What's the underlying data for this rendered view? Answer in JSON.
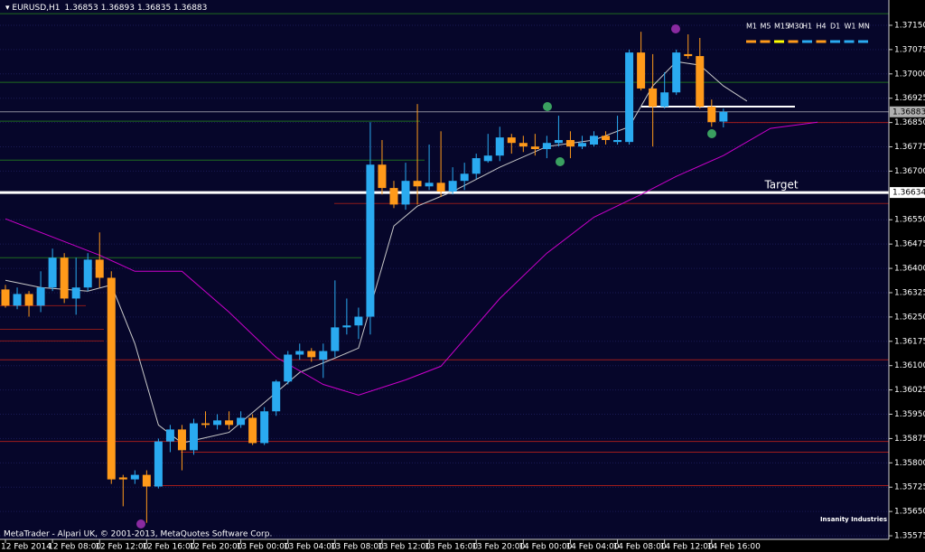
{
  "chart_data": {
    "type": "candlestick",
    "header": {
      "symbol": "EURUSD,H1",
      "ohlc": [
        1.36853,
        1.36893,
        1.36835,
        1.36883
      ]
    },
    "categories": [
      "12 Feb 2014",
      null,
      null,
      null,
      "12 Feb 08:00",
      null,
      null,
      null,
      "12 Feb 12:00",
      null,
      null,
      null,
      "12 Feb 16:00",
      null,
      null,
      null,
      "12 Feb 20:00",
      null,
      null,
      null,
      "13 Feb 00:00",
      null,
      null,
      null,
      "13 Feb 04:00",
      null,
      null,
      null,
      "13 Feb 08:00",
      null,
      null,
      null,
      "13 Feb 12:00",
      null,
      null,
      null,
      "13 Feb 16:00",
      null,
      null,
      null,
      "13 Feb 20:00",
      null,
      null,
      null,
      "14 Feb 00:00",
      null,
      null,
      null,
      "14 Feb 04:00",
      null,
      null,
      null,
      "14 Feb 08:00",
      null,
      null,
      null,
      "14 Feb 12:00",
      null,
      null,
      null,
      "14 Feb 16:00",
      null
    ],
    "open": [
      1.36335,
      1.36285,
      1.36321,
      1.36285,
      1.36341,
      1.36433,
      1.36307,
      1.36341,
      1.36427,
      1.36371,
      1.35755,
      1.35749,
      1.35763,
      1.35727,
      1.35866,
      1.35903,
      1.35839,
      1.35922,
      1.35917,
      1.35931,
      1.35917,
      1.35939,
      1.35861,
      1.35959,
      1.36051,
      1.36134,
      1.36145,
      1.36118,
      1.36145,
      1.36218,
      1.36224,
      1.36251,
      1.3672,
      1.36648,
      1.36597,
      1.3667,
      1.36653,
      1.36664,
      1.36637,
      1.3667,
      1.36692,
      1.36731,
      1.36748,
      1.36804,
      1.36787,
      1.36776,
      1.36768,
      1.36787,
      1.36796,
      1.36776,
      1.36782,
      1.36809,
      1.3679,
      1.3679,
      1.37066,
      1.36955,
      1.36899,
      1.36943,
      1.37061,
      1.37055,
      1.36899,
      1.36853
    ],
    "high": [
      1.36349,
      1.36341,
      1.3633,
      1.36391,
      1.36461,
      1.36447,
      1.36433,
      1.36447,
      1.36511,
      1.36391,
      1.35763,
      1.35777,
      1.35777,
      1.35875,
      1.35917,
      1.35917,
      1.35936,
      1.35959,
      1.3595,
      1.35959,
      1.35959,
      1.3595,
      1.35972,
      1.36056,
      1.36145,
      1.36168,
      1.36154,
      1.36168,
      1.36363,
      1.36307,
      1.36279,
      1.36851,
      1.36796,
      1.3667,
      1.36726,
      1.36907,
      1.36782,
      1.36823,
      1.36712,
      1.36726,
      1.36754,
      1.36815,
      1.36837,
      1.36815,
      1.36809,
      1.36815,
      1.36809,
      1.36871,
      1.36823,
      1.36809,
      1.36823,
      1.36823,
      1.36871,
      1.37075,
      1.3713,
      1.37061,
      1.37005,
      1.37075,
      1.37122,
      1.37111,
      1.36921,
      1.36893
    ],
    "low": [
      1.36279,
      1.36274,
      1.36251,
      1.36265,
      1.3633,
      1.36293,
      1.36257,
      1.3633,
      1.36341,
      1.35735,
      1.35666,
      1.35735,
      1.35615,
      1.35721,
      1.35833,
      1.35777,
      1.35825,
      1.35908,
      1.35903,
      1.35903,
      1.35908,
      1.35855,
      1.35855,
      1.35945,
      1.36042,
      1.36118,
      1.36112,
      1.36062,
      1.36126,
      1.36196,
      1.36182,
      1.36196,
      1.36628,
      1.36586,
      1.36581,
      1.36597,
      1.36642,
      1.3662,
      1.36628,
      1.36642,
      1.36676,
      1.36726,
      1.36731,
      1.36754,
      1.36759,
      1.36748,
      1.3674,
      1.36776,
      1.3674,
      1.36768,
      1.36776,
      1.36782,
      1.36782,
      1.36782,
      1.36949,
      1.36776,
      1.36893,
      1.36935,
      1.37047,
      1.36893,
      1.36837,
      1.36835
    ],
    "close": [
      1.36285,
      1.36321,
      1.36285,
      1.36341,
      1.36433,
      1.36307,
      1.36341,
      1.36427,
      1.36371,
      1.35749,
      1.35749,
      1.35763,
      1.35727,
      1.35866,
      1.35903,
      1.35839,
      1.35922,
      1.35917,
      1.35931,
      1.35917,
      1.35939,
      1.35861,
      1.35959,
      1.36051,
      1.36134,
      1.36145,
      1.36126,
      1.36145,
      1.36218,
      1.36224,
      1.36251,
      1.3672,
      1.36648,
      1.36597,
      1.3667,
      1.36653,
      1.36664,
      1.36637,
      1.3667,
      1.36692,
      1.3674,
      1.36748,
      1.36804,
      1.36787,
      1.36776,
      1.36768,
      1.36787,
      1.36796,
      1.36776,
      1.36787,
      1.36809,
      1.36796,
      1.36796,
      1.37066,
      1.36955,
      1.36899,
      1.36943,
      1.37066,
      1.37055,
      1.36899,
      1.36851,
      1.36883
    ],
    "up_color": "#2aaaf0",
    "down_color": "#ff9a1a",
    "moving_averages": [
      {
        "color": "#c8c8c8",
        "x": [
          0,
          3,
          7,
          9,
          11,
          13,
          15,
          19,
          22,
          25,
          28,
          30,
          31,
          33,
          35,
          38,
          42,
          46,
          50,
          53,
          55,
          57,
          59,
          61,
          63
        ],
        "values": [
          1.36363,
          1.36341,
          1.3633,
          1.36349,
          1.36168,
          1.35917,
          1.35861,
          1.35894,
          1.35986,
          1.36079,
          1.36123,
          1.36154,
          1.36279,
          1.36531,
          1.36592,
          1.36637,
          1.36712,
          1.36776,
          1.36796,
          1.36837,
          1.36963,
          1.37038,
          1.37027,
          1.36963,
          1.36916
        ]
      },
      {
        "color": "#cc00cc",
        "x": [
          0,
          4,
          8,
          11,
          15,
          19,
          23,
          27,
          30,
          34,
          37,
          42,
          46,
          50,
          54,
          57,
          61,
          65,
          69
        ],
        "values": [
          1.36553,
          1.36497,
          1.36441,
          1.36391,
          1.36391,
          1.36265,
          1.36126,
          1.36042,
          1.36009,
          1.36056,
          1.36098,
          1.36307,
          1.36447,
          1.36558,
          1.36628,
          1.36684,
          1.36748,
          1.36832,
          1.36851
        ]
      }
    ],
    "levels": [
      {
        "price": 1.37186,
        "color": "#1f6b1f"
      },
      {
        "price": 1.36974,
        "color": "#1f6b1f"
      },
      {
        "price": 1.36854,
        "color": "#1f6b1f"
      },
      {
        "price": 1.36734,
        "color": "#1f6b1f"
      },
      {
        "price": 1.36433,
        "color": "#1f6b1f"
      },
      {
        "price": 1.366,
        "color": "#8b1a1a"
      },
      {
        "price": 1.3685,
        "color": "#a01c1c"
      },
      {
        "price": 1.36285,
        "color": "#8b1a1a"
      },
      {
        "price": 1.36212,
        "color": "#8b1a1a"
      },
      {
        "price": 1.36176,
        "color": "#8b1a1a"
      },
      {
        "price": 1.36118,
        "color": "#a01c1c"
      },
      {
        "price": 1.35866,
        "color": "#a01c1c"
      },
      {
        "price": 1.35833,
        "color": "#a01c1c"
      },
      {
        "price": 1.3573,
        "color": "#a01c1c"
      },
      {
        "price": 1.36899,
        "color": "#ffffff"
      }
    ],
    "target": {
      "label": "Target",
      "price": 1.36634
    },
    "ylim": [
      1.35564,
      1.37228
    ],
    "yticks": [
      {
        "value": 1.3715,
        "label": "1.37150"
      },
      1.37075,
      {
        "value": 1.37,
        "label": "1.37000"
      },
      1.36925,
      {
        "value": 1.3685,
        "label": "1.36850"
      },
      1.36775,
      {
        "value": 1.367,
        "label": "1.36700"
      },
      {
        "value": 1.3655,
        "label": "1.36550"
      },
      1.36475,
      {
        "value": 1.364,
        "label": "1.36400"
      },
      1.36325,
      {
        "value": 1.3625,
        "label": "1.36250"
      },
      1.36175,
      {
        "value": 1.361,
        "label": "1.36100"
      },
      1.36025,
      {
        "value": 1.3595,
        "label": "1.35950"
      },
      1.35875,
      {
        "value": 1.358,
        "label": "1.35800"
      },
      1.35725,
      {
        "value": 1.3565,
        "label": "1.35650"
      },
      1.35575
    ],
    "grid": true,
    "timeframes": [
      {
        "label": "M1",
        "color": "#ff9a1a"
      },
      {
        "label": "M5",
        "color": "#ff9a1a"
      },
      {
        "label": "M15",
        "color": "#ffff00"
      },
      {
        "label": "M30",
        "color": "#ff9a1a"
      },
      {
        "label": "H1",
        "color": "#2aaaf0"
      },
      {
        "label": "H4",
        "color": "#ff9a1a"
      },
      {
        "label": "D1",
        "color": "#2aaaf0"
      },
      {
        "label": "W1",
        "color": "#2aaaf0"
      },
      {
        "label": "MN",
        "color": "#2aaaf0"
      }
    ],
    "footer": "MetaTrader - Alpari UK, © 2001-2013, MetaQuotes Software Corp.",
    "logo": "Insanity Industries"
  }
}
